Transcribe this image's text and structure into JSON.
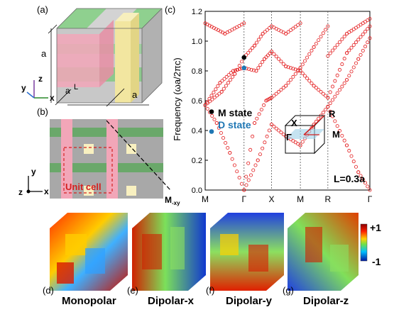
{
  "panels": {
    "a": "(a)",
    "b": "(b)",
    "c": "(c)",
    "d": "(d)",
    "e": "(e)",
    "f": "(f)",
    "g": "(g)"
  },
  "panel_a": {
    "dim_a_left": "a",
    "dim_a_bottom": "a",
    "dim_a_small": "a",
    "dim_L": "L",
    "axis_z": "z",
    "axis_y": "y",
    "axis_x": "x"
  },
  "panel_b": {
    "unit_cell": "Unit cell",
    "m_label": "M",
    "m_sub": "-xy",
    "axis_y": "y",
    "axis_z": "z",
    "axis_x": "x"
  },
  "chart_data": {
    "type": "scatter",
    "ylabel": "Frequency (ωa/2πc)",
    "xlabel": "",
    "ylim": [
      0.0,
      1.2
    ],
    "yticks": [
      "0.0",
      "0.2",
      "0.4",
      "0.6",
      "0.8",
      "1.0",
      "1.2"
    ],
    "x_ticks": [
      "M",
      "Γ",
      "X",
      "M",
      "R",
      "Γ"
    ],
    "annotation": "L=0.3a",
    "markers": [
      {
        "label": "M state",
        "k": "Γ",
        "freq": 0.89,
        "color": "#000000"
      },
      {
        "label": "D state",
        "k": "Γ",
        "freq": 0.82,
        "color": "#1f77b4"
      }
    ],
    "left_markers": [
      {
        "label": "M state",
        "freq": 0.55,
        "color": "#000000"
      },
      {
        "label": "D state",
        "freq": 0.45,
        "color": "#1f77b4"
      }
    ],
    "bz_labels": [
      "R",
      "X",
      "M",
      "Γ"
    ],
    "series_color": "#e31a1c"
  },
  "colorbar": {
    "max": "+1",
    "min": "-1"
  },
  "modes": [
    {
      "letter": "(d)",
      "name": "Monopolar"
    },
    {
      "letter": "(e)",
      "name": "Dipolar-x"
    },
    {
      "letter": "(f)",
      "name": "Dipolar-y"
    },
    {
      "letter": "(g)",
      "name": "Dipolar-z"
    }
  ],
  "colors": {
    "green": "#7fbf7f",
    "pink": "#f2a6b8",
    "yellow": "#f2e6a0",
    "gray": "#a6a6a6",
    "red": "#e31a1c"
  }
}
